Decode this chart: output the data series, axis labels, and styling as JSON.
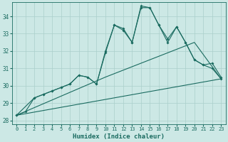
{
  "xlabel": "Humidex (Indice chaleur)",
  "background_color": "#cce8e5",
  "grid_color": "#aacfcb",
  "line_color": "#1a6b60",
  "xlim": [
    -0.5,
    23.5
  ],
  "ylim": [
    27.8,
    34.8
  ],
  "yticks": [
    28,
    29,
    30,
    31,
    32,
    33,
    34
  ],
  "xticks": [
    0,
    1,
    2,
    3,
    4,
    5,
    6,
    7,
    8,
    9,
    10,
    11,
    12,
    13,
    14,
    15,
    16,
    17,
    18,
    19,
    20,
    21,
    22,
    23
  ],
  "series1_x": [
    0,
    1,
    2,
    3,
    4,
    5,
    6,
    7,
    8,
    9,
    10,
    11,
    12,
    13,
    14,
    15,
    16,
    17,
    18,
    19,
    20,
    21,
    22,
    23
  ],
  "series1_y": [
    28.3,
    28.5,
    29.3,
    29.5,
    29.7,
    29.9,
    30.1,
    30.6,
    30.5,
    30.1,
    31.9,
    33.5,
    33.3,
    32.5,
    34.5,
    34.5,
    33.5,
    32.7,
    33.4,
    32.5,
    31.5,
    31.2,
    31.3,
    30.5
  ],
  "series2_x": [
    0,
    2,
    3,
    4,
    5,
    6,
    7,
    8,
    9,
    10,
    11,
    12,
    13,
    14,
    15,
    16,
    17,
    18,
    19,
    20,
    21,
    22,
    23
  ],
  "series2_y": [
    28.3,
    29.3,
    29.5,
    29.7,
    29.9,
    30.1,
    30.6,
    30.5,
    30.1,
    32.0,
    33.5,
    33.2,
    32.5,
    34.6,
    34.5,
    33.5,
    32.5,
    33.4,
    32.5,
    31.5,
    31.2,
    31.0,
    30.4
  ],
  "series3_x": [
    0,
    23
  ],
  "series3_y": [
    28.3,
    30.4
  ],
  "series4_x": [
    0,
    10,
    20,
    23
  ],
  "series4_y": [
    28.3,
    30.5,
    32.5,
    30.4
  ]
}
